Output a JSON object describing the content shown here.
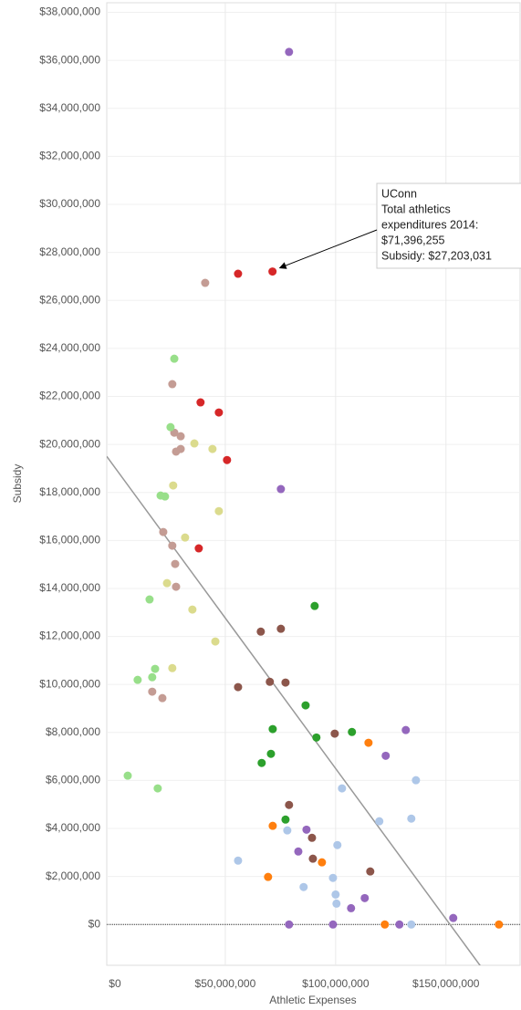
{
  "chart_data": {
    "type": "scatter",
    "xlabel": "Athletic Expenses",
    "ylabel": "Subsidy",
    "xlim": [
      -3700000,
      184000000
    ],
    "ylim": [
      -1700000,
      38400000
    ],
    "xticks": [
      {
        "value": 0,
        "label": "$0"
      },
      {
        "value": 50000000,
        "label": "$50,000,000"
      },
      {
        "value": 100000000,
        "label": "$100,000,000"
      },
      {
        "value": 150000000,
        "label": "$150,000,000"
      }
    ],
    "yticks": [
      {
        "value": 0,
        "label": "$0"
      },
      {
        "value": 2000000,
        "label": "$2,000,000"
      },
      {
        "value": 4000000,
        "label": "$4,000,000"
      },
      {
        "value": 6000000,
        "label": "$6,000,000"
      },
      {
        "value": 8000000,
        "label": "$8,000,000"
      },
      {
        "value": 10000000,
        "label": "$10,000,000"
      },
      {
        "value": 12000000,
        "label": "$12,000,000"
      },
      {
        "value": 14000000,
        "label": "$14,000,000"
      },
      {
        "value": 16000000,
        "label": "$16,000,000"
      },
      {
        "value": 18000000,
        "label": "$18,000,000"
      },
      {
        "value": 20000000,
        "label": "$20,000,000"
      },
      {
        "value": 22000000,
        "label": "$22,000,000"
      },
      {
        "value": 24000000,
        "label": "$24,000,000"
      },
      {
        "value": 26000000,
        "label": "$26,000,000"
      },
      {
        "value": 28000000,
        "label": "$28,000,000"
      },
      {
        "value": 30000000,
        "label": "$30,000,000"
      },
      {
        "value": 32000000,
        "label": "$32,000,000"
      },
      {
        "value": 34000000,
        "label": "$34,000,000"
      },
      {
        "value": 36000000,
        "label": "$36,000,000"
      },
      {
        "value": 38000000,
        "label": "$38,000,000"
      }
    ],
    "grid": true,
    "series": [
      {
        "color": "#9467bd",
        "x": [
          78900000,
          75200000,
          131800000,
          122700000,
          86800000,
          83100000,
          113200000,
          107000000,
          153300000,
          78900000,
          98800000,
          128900000
        ],
        "y": [
          36350000,
          18140000,
          8100000,
          7030000,
          3950000,
          3040000,
          1100000,
          680000,
          270000,
          0,
          0,
          0
        ]
      },
      {
        "color": "#d62728",
        "x": [
          55800000,
          71396255,
          38800000,
          47100000,
          50800000,
          38000000
        ],
        "y": [
          27110000,
          27203031,
          21750000,
          21330000,
          19350000,
          15670000
        ]
      },
      {
        "color": "#c49c94",
        "x": [
          40900000,
          26000000,
          26900000,
          29800000,
          27700000,
          29800000,
          21900000,
          26000000,
          27300000,
          27700000,
          16900000,
          21500000
        ],
        "y": [
          26730000,
          22510000,
          20490000,
          20340000,
          19700000,
          19810000,
          16350000,
          15780000,
          15020000,
          14070000,
          9700000,
          9430000
        ]
      },
      {
        "color": "#98df8a",
        "x": [
          26900000,
          25200000,
          20700000,
          22700000,
          15700000,
          18200000,
          16900000,
          10300000,
          5800000,
          19400000
        ],
        "y": [
          23570000,
          20720000,
          17870000,
          17830000,
          13540000,
          10650000,
          10300000,
          10190000,
          6200000,
          5670000
        ]
      },
      {
        "color": "#dbdb8d",
        "x": [
          36000000,
          44200000,
          47100000,
          26400000,
          31800000,
          23600000,
          35100000,
          45500000,
          26000000
        ],
        "y": [
          20040000,
          19810000,
          17220000,
          18290000,
          16120000,
          14220000,
          13120000,
          11790000,
          10680000
        ]
      },
      {
        "color": "#8c564b",
        "x": [
          66100000,
          75200000,
          55800000,
          70200000,
          77300000,
          99600000,
          78900000,
          89300000,
          89700000,
          115700000
        ],
        "y": [
          12200000,
          12320000,
          9890000,
          10110000,
          10080000,
          7950000,
          4980000,
          3610000,
          2740000,
          2210000
        ]
      },
      {
        "color": "#2ca02c",
        "x": [
          90500000,
          86400000,
          71500000,
          91300000,
          107400000,
          70700000,
          66500000,
          77300000
        ],
        "y": [
          13270000,
          9130000,
          8140000,
          7790000,
          8020000,
          7110000,
          6730000,
          4370000
        ]
      },
      {
        "color": "#ff7f0e",
        "x": [
          114900000,
          71500000,
          69400000,
          93800000,
          122300000,
          174000000
        ],
        "y": [
          7570000,
          4110000,
          1980000,
          2590000,
          0,
          0
        ]
      },
      {
        "color": "#aec7e8",
        "x": [
          102900000,
          136400000,
          119800000,
          134300000,
          78100000,
          100800000,
          55800000,
          98800000,
          100000000,
          85500000,
          100400000,
          134300000
        ],
        "y": [
          5670000,
          6010000,
          4300000,
          4410000,
          3920000,
          3310000,
          2660000,
          1940000,
          1250000,
          1560000,
          870000,
          0
        ]
      }
    ],
    "trendline": {
      "color": "#999999",
      "x": [
        -3700000,
        167000000
      ],
      "y": [
        19500000,
        -1900000
      ]
    },
    "annotation": {
      "lines": [
        "UConn",
        "Total athletics",
        "expenditures 2014:",
        "$71,396,255",
        "Subsidy: $27,203,031"
      ]
    }
  }
}
